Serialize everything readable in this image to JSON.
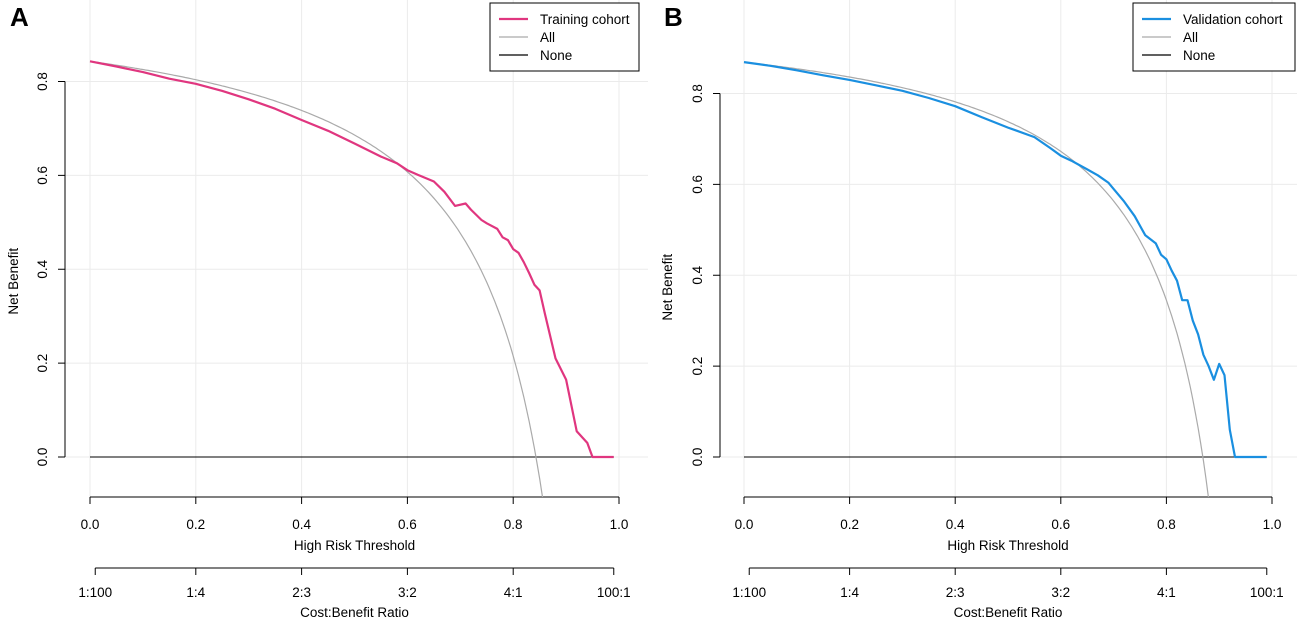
{
  "chart_data": [
    {
      "type": "line",
      "panel": "A",
      "xlabel": "High Risk Threshold",
      "ylabel": "Net Benefit",
      "xlim": [
        0,
        1
      ],
      "ylim": [
        -0.09,
        0.98
      ],
      "x_ticks": [
        0.0,
        0.2,
        0.4,
        0.6,
        0.8,
        1.0
      ],
      "x_tick_labels": [
        "0.0",
        "0.2",
        "0.4",
        "0.6",
        "0.8",
        "1.0"
      ],
      "y_ticks": [
        0.0,
        0.2,
        0.4,
        0.6,
        0.8
      ],
      "y_tick_labels": [
        "0.0",
        "0.2",
        "0.4",
        "0.6",
        "0.8"
      ],
      "grid": true,
      "legend_position": "top-right",
      "cost_benefit_axis": {
        "title": "Cost:Benefit Ratio",
        "ticks": [
          0.0099,
          0.2,
          0.4,
          0.6,
          0.8,
          0.9901
        ],
        "labels": [
          "1:100",
          "1:4",
          "2:3",
          "3:2",
          "4:1",
          "100:1"
        ]
      },
      "series": [
        {
          "name": "Training cohort",
          "color": "#e0367f",
          "role": "model",
          "x": [
            0.0,
            0.05,
            0.1,
            0.15,
            0.2,
            0.25,
            0.3,
            0.35,
            0.4,
            0.45,
            0.5,
            0.55,
            0.58,
            0.6,
            0.62,
            0.65,
            0.67,
            0.69,
            0.71,
            0.72,
            0.74,
            0.75,
            0.77,
            0.78,
            0.79,
            0.8,
            0.81,
            0.82,
            0.83,
            0.84,
            0.85,
            0.86,
            0.88,
            0.9,
            0.92,
            0.94,
            0.95,
            0.97,
            0.99
          ],
          "values": [
            0.843,
            0.832,
            0.82,
            0.806,
            0.795,
            0.78,
            0.762,
            0.742,
            0.718,
            0.695,
            0.668,
            0.64,
            0.626,
            0.611,
            0.601,
            0.587,
            0.565,
            0.535,
            0.54,
            0.527,
            0.505,
            0.498,
            0.486,
            0.468,
            0.462,
            0.443,
            0.435,
            0.415,
            0.392,
            0.367,
            0.355,
            0.305,
            0.21,
            0.165,
            0.055,
            0.03,
            0.0,
            0.0,
            0.0
          ]
        },
        {
          "name": "All",
          "color": "#aaaaaa",
          "role": "treat-all",
          "prevalence": 0.843
        },
        {
          "name": "None",
          "color": "#000000",
          "role": "treat-none",
          "x": [
            0.0,
            0.99
          ],
          "values": [
            0.0,
            0.0
          ]
        }
      ]
    },
    {
      "type": "line",
      "panel": "B",
      "xlabel": "High Risk Threshold",
      "ylabel": "Net Benefit",
      "xlim": [
        0,
        1
      ],
      "ylim": [
        -0.09,
        0.98
      ],
      "x_ticks": [
        0.0,
        0.2,
        0.4,
        0.6,
        0.8,
        1.0
      ],
      "x_tick_labels": [
        "0.0",
        "0.2",
        "0.4",
        "0.6",
        "0.8",
        "1.0"
      ],
      "y_ticks": [
        0.0,
        0.2,
        0.4,
        0.6,
        0.8
      ],
      "y_tick_labels": [
        "0.0",
        "0.2",
        "0.4",
        "0.6",
        "0.8"
      ],
      "grid": true,
      "legend_position": "top-right",
      "cost_benefit_axis": {
        "title": "Cost:Benefit Ratio",
        "ticks": [
          0.0099,
          0.2,
          0.4,
          0.6,
          0.8,
          0.9901
        ],
        "labels": [
          "1:100",
          "1:4",
          "2:3",
          "3:2",
          "4:1",
          "100:1"
        ]
      },
      "series": [
        {
          "name": "Validation cohort",
          "color": "#1a8fe0",
          "role": "model",
          "x": [
            0.0,
            0.05,
            0.1,
            0.15,
            0.2,
            0.25,
            0.3,
            0.35,
            0.4,
            0.45,
            0.5,
            0.55,
            0.58,
            0.6,
            0.62,
            0.65,
            0.67,
            0.69,
            0.7,
            0.72,
            0.74,
            0.76,
            0.78,
            0.79,
            0.8,
            0.81,
            0.82,
            0.83,
            0.84,
            0.85,
            0.86,
            0.87,
            0.88,
            0.89,
            0.9,
            0.91,
            0.92,
            0.93,
            0.94,
            0.95,
            0.99
          ],
          "values": [
            0.869,
            0.861,
            0.851,
            0.84,
            0.83,
            0.818,
            0.806,
            0.79,
            0.772,
            0.748,
            0.725,
            0.704,
            0.68,
            0.663,
            0.652,
            0.633,
            0.62,
            0.604,
            0.59,
            0.562,
            0.53,
            0.488,
            0.47,
            0.445,
            0.435,
            0.41,
            0.388,
            0.345,
            0.345,
            0.3,
            0.27,
            0.225,
            0.2,
            0.17,
            0.205,
            0.18,
            0.06,
            0.0,
            0.0,
            0.0,
            0.0
          ]
        },
        {
          "name": "All",
          "color": "#aaaaaa",
          "role": "treat-all",
          "prevalence": 0.869
        },
        {
          "name": "None",
          "color": "#000000",
          "role": "treat-none",
          "x": [
            0.0,
            0.99
          ],
          "values": [
            0.0,
            0.0
          ]
        }
      ]
    }
  ]
}
